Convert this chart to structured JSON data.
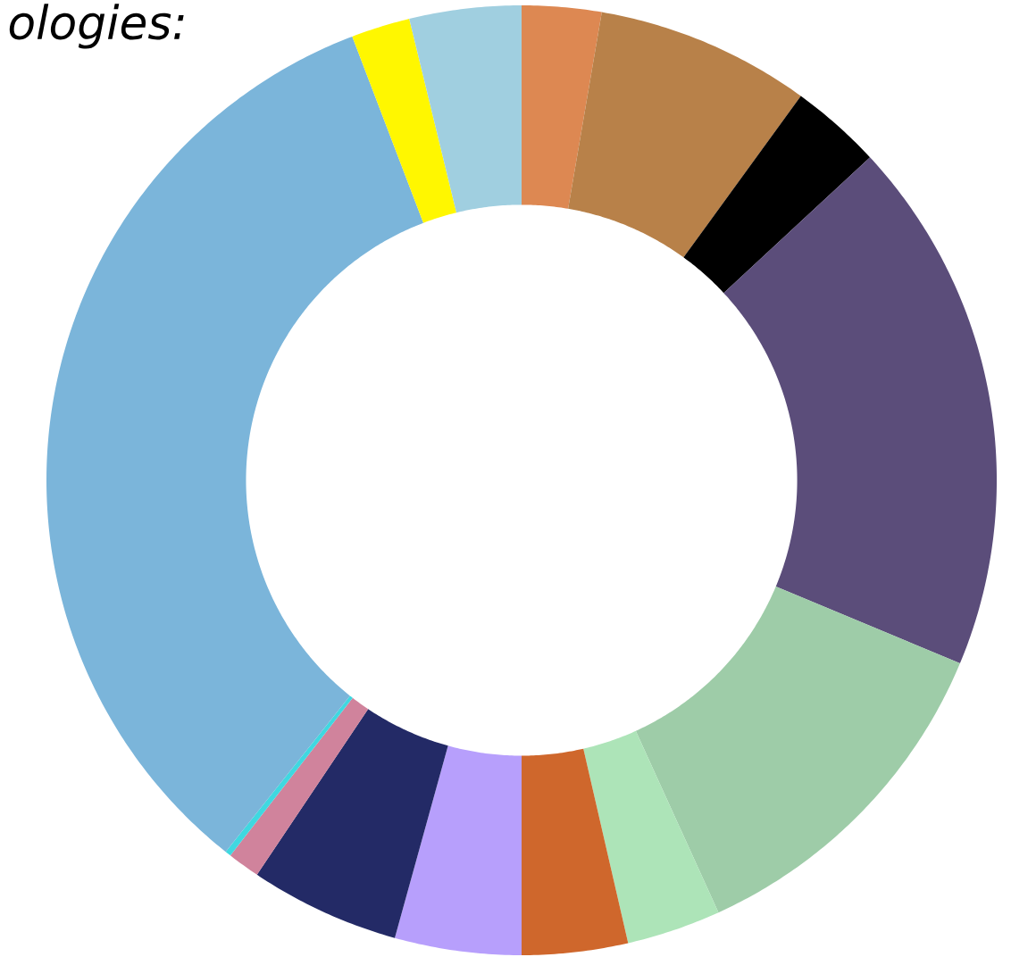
{
  "chart_data": {
    "type": "donut",
    "title": "*ologies:*",
    "categories": [
      null,
      null,
      null,
      null,
      null,
      null,
      null,
      null,
      null,
      null,
      null,
      null,
      null,
      null
    ],
    "values": [
      2.7,
      7.3,
      3.1,
      18.2,
      11.9,
      3.2,
      3.6,
      4.3,
      5.1,
      1.1,
      0.2,
      33.5,
      2.0,
      3.8
    ],
    "colors": [
      "#dd8852",
      "#b88149",
      "#000000",
      "#5b4d7a",
      "#9ecca8",
      "#ade4b8",
      "#cf672c",
      "#b79ffc",
      "#232a66",
      "#d0839c",
      "#3fd8e0",
      "#7bb5da",
      "#fff700",
      "#a0cfe0"
    ]
  }
}
